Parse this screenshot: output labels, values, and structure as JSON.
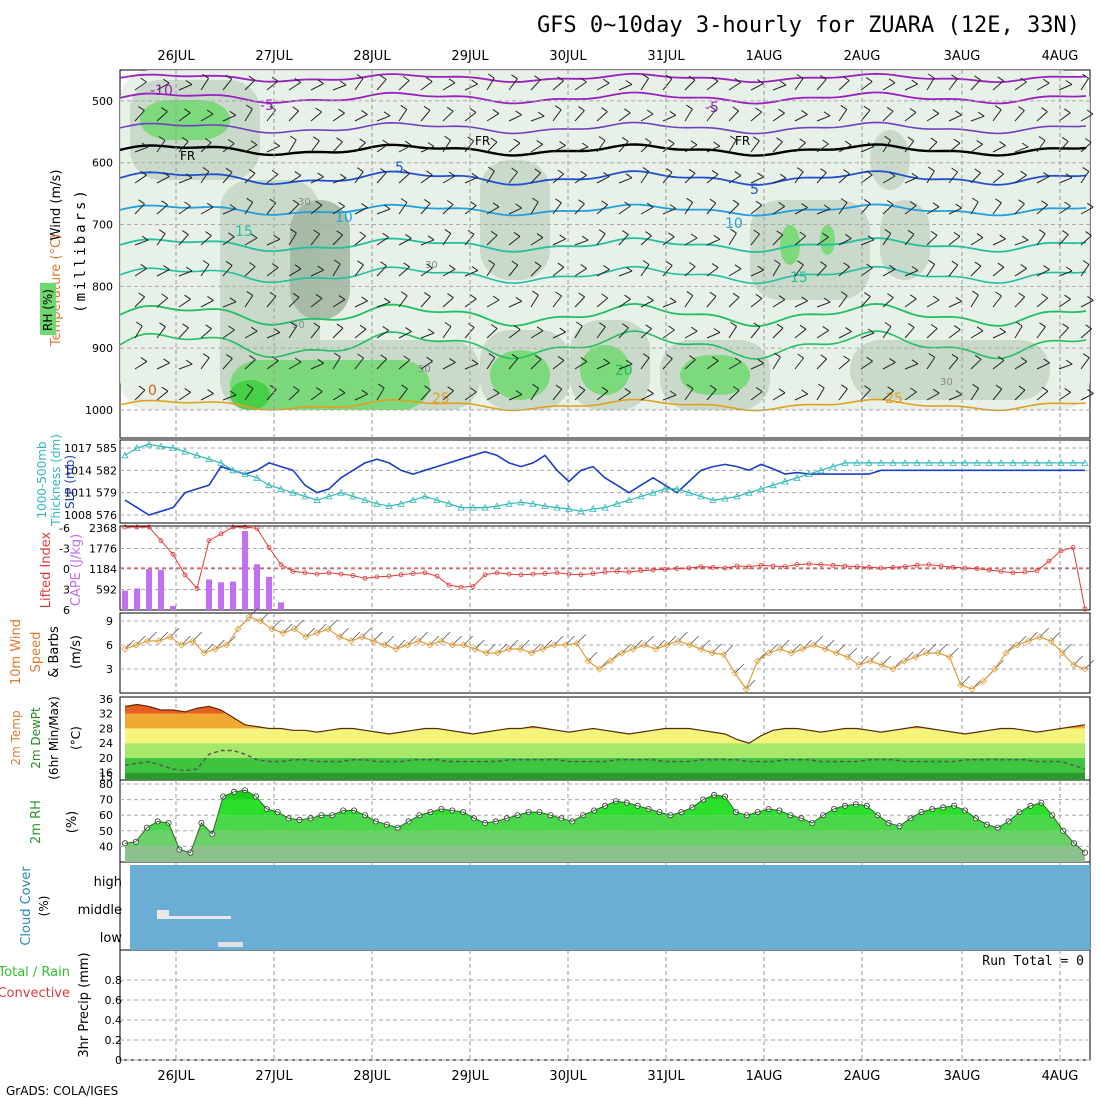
{
  "title": "GFS 0~10day 3-hourly for ZUARA (12E, 33N)",
  "footer": "GrADS: COLA/IGES",
  "date_labels": [
    "26JUL",
    "27JUL",
    "28JUL",
    "29JUL",
    "30JUL",
    "31JUL",
    "1AUG",
    "2AUG",
    "3AUG",
    "4AUG"
  ],
  "panel_labels": {
    "upper": {
      "wind": "Wind (m/s)",
      "temperature": "Temperature (°C)",
      "rh": "RH (%)",
      "millibars": "(millibars)"
    },
    "slp": {
      "slp": "SLP (mb)",
      "thickness1": "1000-500mb",
      "thickness2": "Thickness (dm)"
    },
    "cape": {
      "li": "Lifted Index",
      "cape": "CAPE (J/kg)"
    },
    "wind10m": {
      "l1": "10m Wind",
      "l2": "Speed",
      "l3": "& Barbs",
      "unit": "(m/s)"
    },
    "temp2m": {
      "l1": "2m Temp",
      "l2": "2m DewPt",
      "l3": "(6hr Min/Max)",
      "unit": "(°C)"
    },
    "rh2m": {
      "l1": "2m RH",
      "unit": "(%)"
    },
    "cloud": {
      "l1": "Cloud Cover",
      "unit": "(%)",
      "high": "high",
      "middle": "middle",
      "low": "low"
    },
    "precip": {
      "l1": "Total / Rain",
      "l2": "Convective",
      "l3": "3hr Precip (mm)",
      "run_total": "Run Total = 0"
    }
  },
  "contour_labels": {
    "temps": [
      "-10",
      "-5",
      "-5",
      "5",
      "5",
      "10",
      "10",
      "15",
      "15",
      "20",
      "25",
      "25",
      "0"
    ],
    "freezing": "FR",
    "rh": [
      "30",
      "30",
      "50",
      "50",
      "30"
    ]
  },
  "colors": {
    "temp_cold": "#9a20c0",
    "temp_fr": "#000000",
    "temp_5": "#2050d0",
    "temp_10": "#20a0e0",
    "temp_15": "#20c0a0",
    "temp_20": "#20c060",
    "temp_25": "#e0a020",
    "temp_30": "#d06010",
    "rh_light": "#e4efe4",
    "rh_mid": "#c4d6c4",
    "rh_dark": "#9fb59f",
    "rh_green": "#6fd86f",
    "slp": "#1a3fc8",
    "thickness": "#30b8b8",
    "li": "#e03a3a",
    "cape": "#c070f0",
    "wind_speed": "#e0a040",
    "cloud": "#6aaed6",
    "rh2m": "#30dd30"
  },
  "chart_data": [
    {
      "type": "contour",
      "name": "upper",
      "ylabel": "(millibars)",
      "yticks": [
        500,
        600,
        700,
        800,
        900,
        1000
      ],
      "ylim": [
        1000,
        450
      ]
    },
    {
      "type": "line",
      "name": "slp",
      "yticks_left": [
        576,
        579,
        582,
        585
      ],
      "yticks_right": [
        1008,
        1011,
        1014,
        1017
      ],
      "slp": [
        1010,
        1009,
        1008,
        1008.5,
        1009,
        1011,
        1011.5,
        1012,
        1014.5,
        1014,
        1013.5,
        1014,
        1015,
        1014.5,
        1014,
        1012,
        1011,
        1011.5,
        1013,
        1014,
        1015,
        1015.5,
        1015,
        1014,
        1013.5,
        1014,
        1014.5,
        1015,
        1015.5,
        1016,
        1016.5,
        1016,
        1015,
        1014.5,
        1015,
        1016,
        1014,
        1012.5,
        1014,
        1014.5,
        1013,
        1012,
        1011,
        1012,
        1013,
        1012,
        1011,
        1012.5,
        1014,
        1014.5,
        1014.8,
        1014.5,
        1014,
        1014.8,
        1014.2,
        1013.5,
        1013.7,
        1013.5,
        1013.5,
        1013.5,
        1013.5,
        1013.5,
        1013.5,
        1014,
        1014,
        1014,
        1014,
        1014,
        1014,
        1014,
        1014,
        1014,
        1014,
        1014,
        1014,
        1014,
        1014,
        1014,
        1014,
        1014,
        1014
      ],
      "thickness": [
        584,
        585,
        585.5,
        585.2,
        585,
        584.5,
        584,
        583.5,
        583,
        582,
        581.5,
        581,
        580,
        579.5,
        579,
        578.5,
        578,
        578.5,
        579,
        578.5,
        578,
        577.5,
        577.2,
        577.5,
        578,
        578.5,
        578,
        577.5,
        577,
        577,
        577,
        577.2,
        577.5,
        577.7,
        577.5,
        577.2,
        577,
        576.8,
        576.5,
        576.8,
        577,
        577.5,
        578,
        578.5,
        579,
        579.5,
        579.5,
        579,
        578.5,
        578,
        578.2,
        578.5,
        579,
        579.5,
        580,
        580.5,
        581,
        581.5,
        582,
        582.5,
        583,
        583,
        583,
        583,
        583,
        583,
        583,
        583,
        583,
        583,
        583,
        583,
        583,
        583,
        583,
        583,
        583,
        583,
        583,
        583,
        583
      ]
    },
    {
      "type": "bar+line",
      "name": "cape_li",
      "yticks_li": [
        "6",
        "3",
        "0",
        "-3",
        "-6"
      ],
      "yticks_cape": [
        592,
        1184,
        1776,
        2368
      ],
      "cape": [
        560,
        620,
        1180,
        1160,
        120,
        0,
        0,
        880,
        800,
        820,
        2280,
        1320,
        960,
        220,
        0,
        0,
        0,
        0,
        0,
        0,
        0,
        0,
        0,
        0,
        0,
        0,
        0,
        0,
        0,
        0,
        0,
        0,
        0,
        0,
        0,
        0,
        0,
        0,
        0,
        0,
        0,
        0,
        0,
        0,
        0,
        0,
        0,
        0,
        0,
        0,
        0,
        0,
        0,
        0,
        0,
        0,
        0,
        0,
        0,
        0,
        0,
        0,
        0,
        0,
        0,
        0,
        0,
        0,
        0,
        0,
        0,
        0,
        0,
        0,
        0,
        0,
        0,
        0,
        0,
        0,
        0
      ],
      "li": [
        -6,
        -6.5,
        -6,
        -4,
        -2,
        1,
        3,
        -4,
        -5,
        -6,
        -6.2,
        -5.8,
        -3,
        -0.5,
        0.5,
        0.7,
        0.9,
        0.7,
        0.9,
        1.1,
        1.5,
        1.3,
        1.2,
        1.0,
        0.8,
        0.7,
        1.2,
        2.5,
        2.8,
        2.7,
        1.0,
        0.7,
        0.9,
        1.0,
        0.9,
        0.8,
        0.7,
        0.9,
        1.0,
        0.8,
        0.6,
        0.5,
        0.6,
        0.4,
        0.3,
        0.2,
        0.1,
        0.0,
        -0.2,
        -0.1,
        0.0,
        -0.3,
        -0.2,
        -0.4,
        -0.3,
        -0.2,
        -0.5,
        -0.6,
        -0.5,
        -0.4,
        -0.3,
        -0.2,
        -0.1,
        0.0,
        -0.1,
        -0.2,
        -0.4,
        -0.5,
        -0.3,
        -0.1,
        0.0,
        0.1,
        0.3,
        0.5,
        0.7,
        0.6,
        0.4,
        -1.0,
        -2.5,
        -3.0,
        6.0
      ]
    },
    {
      "type": "line",
      "name": "wind10m",
      "yticks": [
        3,
        6,
        9
      ],
      "speed": [
        5.5,
        6,
        6.5,
        6.5,
        7,
        6,
        6.5,
        5,
        5.5,
        6,
        8,
        9.5,
        9,
        8,
        7.5,
        8,
        7,
        7.5,
        8,
        7,
        6.5,
        7,
        6.5,
        6,
        5.5,
        6,
        6.5,
        6,
        6.5,
        6,
        6,
        5.5,
        5,
        5,
        5.5,
        5.5,
        5,
        5.5,
        6,
        6,
        6.2,
        4,
        3,
        4,
        5,
        5.5,
        6,
        5.5,
        6,
        6.5,
        6,
        5.5,
        5,
        4.8,
        2.5,
        0.5,
        4,
        5,
        5.5,
        5,
        5.5,
        6,
        5.5,
        5,
        4.5,
        3.5,
        4,
        3.5,
        3,
        4,
        4.5,
        5,
        5,
        4.5,
        1,
        0.5,
        1.5,
        3,
        5,
        6,
        6.5,
        7,
        6.5,
        5,
        3.5,
        3
      ]
    },
    {
      "type": "area",
      "name": "temp2m",
      "yticks": [
        15,
        16,
        20,
        24,
        28,
        32,
        36
      ],
      "temp": [
        34,
        34.5,
        34,
        33,
        33,
        32.5,
        33.5,
        34,
        33,
        31,
        29,
        28.5,
        28,
        28,
        27.5,
        27.5,
        27,
        27.5,
        28,
        28,
        27.5,
        27,
        26.5,
        27,
        27.5,
        28,
        28,
        27.5,
        27,
        26.5,
        27,
        27.5,
        28,
        28,
        28.5,
        28,
        27.5,
        27,
        27.5,
        28,
        27.5,
        27,
        26.5,
        27,
        27.5,
        28,
        28,
        28,
        27.5,
        27,
        26.5,
        25,
        24,
        26,
        27.5,
        28,
        28,
        27.5,
        27,
        27.5,
        28,
        28,
        27.5,
        27,
        27.5,
        28,
        28.5,
        28,
        27.5,
        27,
        26.5,
        27,
        27.5,
        28,
        28,
        27.5,
        27,
        27.5,
        28,
        28.5,
        29
      ],
      "dewpt": [
        18,
        18.5,
        19,
        18,
        17,
        16.5,
        17,
        21,
        22,
        22,
        21,
        19.5,
        19,
        19,
        19.5,
        19.5,
        19,
        19,
        19,
        19.5,
        19.5,
        19,
        19,
        19,
        19.5,
        19.5,
        19.5,
        19,
        19,
        19,
        19,
        19,
        19.5,
        19.5,
        19.5,
        19.5,
        19.5,
        19,
        19,
        19,
        19,
        19.5,
        19.5,
        19.5,
        19.5,
        19,
        19,
        19,
        19.5,
        19.5,
        19.5,
        19.5,
        19,
        19,
        19,
        19.5,
        19.5,
        19.5,
        19,
        19,
        19,
        19,
        19.5,
        19.5,
        19.5,
        19,
        19,
        19,
        19,
        19,
        19.5,
        19.5,
        19.5,
        19.5,
        19.5,
        19.5,
        19,
        19,
        19,
        18,
        17
      ]
    },
    {
      "type": "area",
      "name": "rh2m",
      "yticks": [
        40,
        50,
        60,
        70,
        80
      ],
      "rh": [
        42,
        43,
        52,
        56,
        55,
        38,
        36,
        55,
        48,
        72,
        75,
        76,
        72,
        64,
        62,
        58,
        57,
        58,
        60,
        60,
        63,
        63,
        60,
        56,
        54,
        52,
        56,
        60,
        62,
        64,
        63,
        62,
        58,
        55,
        56,
        58,
        60,
        62,
        62,
        60,
        58,
        56,
        60,
        63,
        66,
        69,
        68,
        66,
        64,
        62,
        60,
        62,
        65,
        70,
        73,
        72,
        62,
        60,
        62,
        64,
        63,
        60,
        58,
        55,
        60,
        64,
        66,
        67,
        66,
        60,
        55,
        53,
        58,
        62,
        64,
        65,
        66,
        63,
        58,
        54,
        52,
        56,
        62,
        66,
        68,
        60,
        50,
        42,
        36
      ],
      "ylim": [
        30,
        80
      ]
    },
    {
      "type": "bar",
      "name": "cloud",
      "levels": [
        "high",
        "middle",
        "low"
      ]
    },
    {
      "type": "bar",
      "name": "precip",
      "yticks": [
        "0",
        "0.2",
        "0.4",
        "0.6",
        "0.8"
      ],
      "ylim": [
        0,
        1
      ]
    }
  ]
}
